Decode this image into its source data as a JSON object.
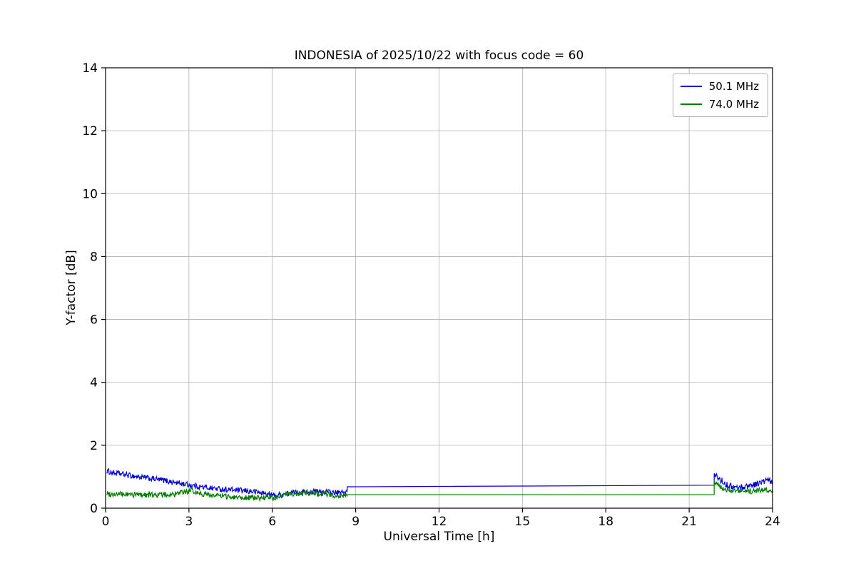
{
  "chart_data": {
    "type": "line",
    "title": "INDONESIA of 2025/10/22 with focus code = 60",
    "xlabel": "Universal Time [h]",
    "ylabel": "Y-factor [dB]",
    "xlim": [
      0,
      24
    ],
    "ylim": [
      0,
      14
    ],
    "xticks": [
      0,
      3,
      6,
      9,
      12,
      15,
      18,
      21,
      24
    ],
    "yticks": [
      0,
      2,
      4,
      6,
      8,
      10,
      12,
      14
    ],
    "grid": true,
    "grid_color": "#b0b0b0",
    "legend_position": "upper right",
    "series": [
      {
        "name": "50.1 MHz",
        "color": "#0000dd",
        "seed": 1234,
        "segments": [
          {
            "kind": "noisy",
            "noise": 0.09,
            "step": 0.02,
            "trend": [
              [
                0.05,
                1.18
              ],
              [
                0.3,
                1.12
              ],
              [
                0.6,
                1.08
              ],
              [
                1.0,
                1.02
              ],
              [
                1.4,
                0.97
              ],
              [
                1.8,
                0.92
              ],
              [
                2.2,
                0.87
              ],
              [
                2.6,
                0.8
              ],
              [
                3.0,
                0.74
              ],
              [
                3.4,
                0.68
              ],
              [
                3.8,
                0.64
              ],
              [
                4.2,
                0.6
              ],
              [
                4.6,
                0.58
              ],
              [
                5.0,
                0.55
              ],
              [
                5.4,
                0.52
              ],
              [
                5.8,
                0.45
              ],
              [
                6.1,
                0.4
              ],
              [
                6.4,
                0.44
              ],
              [
                6.8,
                0.5
              ],
              [
                7.2,
                0.52
              ],
              [
                7.6,
                0.53
              ],
              [
                8.0,
                0.52
              ],
              [
                8.4,
                0.48
              ],
              [
                8.7,
                0.52
              ]
            ]
          },
          {
            "kind": "line",
            "trend": [
              [
                8.7,
                0.68
              ],
              [
                21.9,
                0.73
              ]
            ]
          },
          {
            "kind": "noisy",
            "noise": 0.1,
            "step": 0.02,
            "trend": [
              [
                21.9,
                1.05
              ],
              [
                22.0,
                1.0
              ],
              [
                22.2,
                0.85
              ],
              [
                22.4,
                0.72
              ],
              [
                22.7,
                0.65
              ],
              [
                23.0,
                0.68
              ],
              [
                23.3,
                0.75
              ],
              [
                23.6,
                0.82
              ],
              [
                23.85,
                0.9
              ],
              [
                24.0,
                0.78
              ]
            ]
          }
        ]
      },
      {
        "name": "74.0 MHz",
        "color": "#007a00",
        "seed": 99,
        "segments": [
          {
            "kind": "noisy",
            "noise": 0.09,
            "step": 0.02,
            "trend": [
              [
                0.05,
                0.46
              ],
              [
                0.5,
                0.44
              ],
              [
                1.0,
                0.43
              ],
              [
                1.5,
                0.43
              ],
              [
                2.0,
                0.42
              ],
              [
                2.5,
                0.44
              ],
              [
                2.9,
                0.52
              ],
              [
                3.1,
                0.56
              ],
              [
                3.3,
                0.5
              ],
              [
                3.6,
                0.44
              ],
              [
                4.0,
                0.4
              ],
              [
                4.4,
                0.37
              ],
              [
                4.8,
                0.35
              ],
              [
                5.2,
                0.34
              ],
              [
                5.6,
                0.33
              ],
              [
                6.0,
                0.32
              ],
              [
                6.4,
                0.4
              ],
              [
                6.8,
                0.47
              ],
              [
                7.2,
                0.48
              ],
              [
                7.6,
                0.46
              ],
              [
                8.0,
                0.44
              ],
              [
                8.4,
                0.4
              ],
              [
                8.7,
                0.42
              ]
            ]
          },
          {
            "kind": "line",
            "trend": [
              [
                8.7,
                0.43
              ],
              [
                21.9,
                0.43
              ]
            ]
          },
          {
            "kind": "noisy",
            "noise": 0.08,
            "step": 0.02,
            "trend": [
              [
                21.9,
                0.85
              ],
              [
                22.1,
                0.7
              ],
              [
                22.3,
                0.6
              ],
              [
                22.6,
                0.55
              ],
              [
                23.0,
                0.52
              ],
              [
                23.4,
                0.55
              ],
              [
                23.7,
                0.6
              ],
              [
                24.0,
                0.55
              ]
            ]
          }
        ]
      }
    ]
  }
}
